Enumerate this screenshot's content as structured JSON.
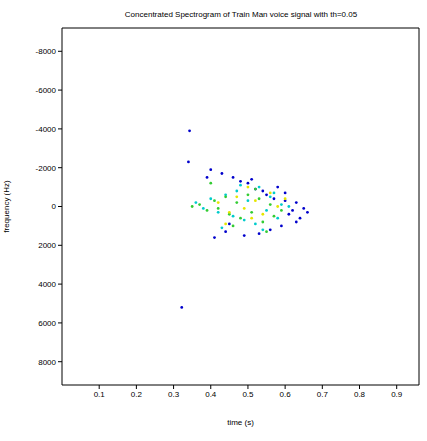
{
  "chart_data": {
    "type": "scatter",
    "title": "Concentrated Spectrogram of Train Man voice signal with th=0.05",
    "x_label": "time (s)",
    "y_label": "frequency (Hz)",
    "xlim": [
      0,
      0.96
    ],
    "xticks": [
      0.1,
      0.2,
      0.3,
      0.4,
      0.5,
      0.6,
      0.7,
      0.8,
      0.9
    ],
    "ylim": [
      9200,
      -9200
    ],
    "yticks": [
      -8000,
      -6000,
      -4000,
      -2000,
      0,
      2000,
      4000,
      6000,
      8000
    ],
    "series": [
      {
        "color": "#0000cc",
        "marker": "dot",
        "x": [
          0.34,
          0.343,
          0.322,
          0.4,
          0.43,
          0.46,
          0.48,
          0.5,
          0.52,
          0.54,
          0.55,
          0.57,
          0.58,
          0.6,
          0.61,
          0.62,
          0.63,
          0.64,
          0.65,
          0.66,
          0.59,
          0.56,
          0.53,
          0.49,
          0.44,
          0.41,
          0.39,
          0.45,
          0.51,
          0.6,
          0.63
        ],
        "y": [
          -2300,
          -3900,
          5200,
          -1900,
          -1700,
          -1500,
          -1300,
          -1200,
          -900,
          -800,
          -600,
          -400,
          -1000,
          -300,
          400,
          200,
          -200,
          600,
          100,
          300,
          1000,
          1200,
          1400,
          1500,
          1300,
          1600,
          -1500,
          900,
          -1400,
          -700,
          800
        ]
      },
      {
        "color": "#00cccc",
        "marker": "dot",
        "x": [
          0.36,
          0.38,
          0.4,
          0.42,
          0.44,
          0.46,
          0.47,
          0.49,
          0.5,
          0.52,
          0.53,
          0.55,
          0.56,
          0.58,
          0.59,
          0.61,
          0.43,
          0.48,
          0.54,
          0.57
        ],
        "y": [
          -200,
          100,
          -400,
          300,
          -600,
          500,
          -800,
          700,
          -300,
          900,
          -1000,
          200,
          -500,
          600,
          -100,
          0,
          1100,
          -1100,
          1200,
          -700
        ]
      },
      {
        "color": "#33cc33",
        "marker": "dot",
        "x": [
          0.35,
          0.37,
          0.39,
          0.41,
          0.42,
          0.44,
          0.45,
          0.47,
          0.48,
          0.5,
          0.51,
          0.53,
          0.54,
          0.56,
          0.57,
          0.59,
          0.4,
          0.46,
          0.52,
          0.55
        ],
        "y": [
          0,
          -100,
          200,
          -300,
          100,
          -500,
          400,
          -200,
          600,
          -600,
          300,
          -400,
          800,
          -100,
          500,
          200,
          -1200,
          1000,
          -900,
          1300
        ]
      },
      {
        "color": "#e6e600",
        "marker": "dot",
        "x": [
          0.42,
          0.45,
          0.47,
          0.49,
          0.51,
          0.52,
          0.54,
          0.56,
          0.58,
          0.6,
          0.5,
          0.44
        ],
        "y": [
          -200,
          300,
          -500,
          100,
          600,
          -300,
          400,
          -700,
          0,
          -400,
          -1000,
          900
        ]
      }
    ]
  }
}
